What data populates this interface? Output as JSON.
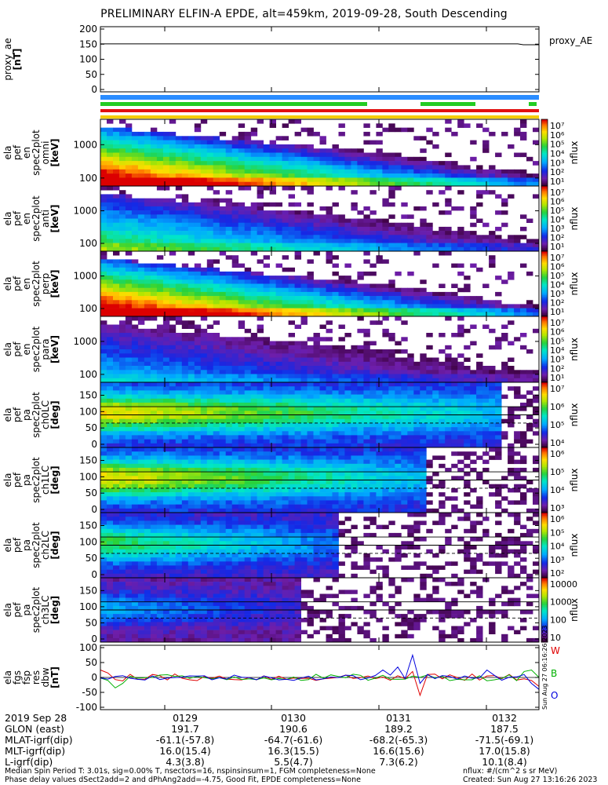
{
  "title": "PRELIMINARY ELFIN-A EPDE, alt=459km, 2019-09-28, South Descending",
  "panels": [
    {
      "ylabel": [
        "proxy_ae",
        "[nT]"
      ],
      "ticks": [
        "200",
        "150",
        "100",
        "50",
        "0"
      ],
      "legend": "proxy_AE"
    },
    {
      "ylabel": [
        "ela",
        "pef",
        "en",
        "spec2plot",
        "omni",
        "[keV]"
      ],
      "ticks": [
        "1000",
        "100"
      ],
      "cbticks": [
        "10⁷",
        "10⁶",
        "10⁵",
        "10⁴",
        "10³",
        "10²",
        "10¹"
      ],
      "cblabel": "nflux"
    },
    {
      "ylabel": [
        "ela",
        "pef",
        "en",
        "spec2plot",
        "anti",
        "[keV]"
      ],
      "ticks": [
        "1000",
        "100"
      ],
      "cbticks": [
        "10⁷",
        "10⁶",
        "10⁵",
        "10⁴",
        "10³",
        "10²",
        "10¹"
      ],
      "cblabel": "nflux"
    },
    {
      "ylabel": [
        "ela",
        "pef",
        "en",
        "spec2plot",
        "perp",
        "[keV]"
      ],
      "ticks": [
        "1000",
        "100"
      ],
      "cbticks": [
        "10⁷",
        "10⁶",
        "10⁵",
        "10⁴",
        "10³",
        "10²",
        "10¹"
      ],
      "cblabel": "nflux"
    },
    {
      "ylabel": [
        "ela",
        "pef",
        "en",
        "spec2plot",
        "para",
        "[keV]"
      ],
      "ticks": [
        "1000",
        "100"
      ],
      "cbticks": [
        "10⁷",
        "10⁶",
        "10⁵",
        "10⁴",
        "10³",
        "10²",
        "10¹"
      ],
      "cblabel": "nflux"
    },
    {
      "ylabel": [
        "ela",
        "pef",
        "pa",
        "spec2plot",
        "ch0LC",
        "[deg]"
      ],
      "ticks": [
        "150",
        "100",
        "50",
        "0"
      ],
      "cbticks": [
        "10⁷",
        "10⁶",
        "10⁵",
        "10⁴"
      ],
      "cblabel": "nflux"
    },
    {
      "ylabel": [
        "ela",
        "pef",
        "pa",
        "spec2plot",
        "ch1LC",
        "[deg]"
      ],
      "ticks": [
        "150",
        "100",
        "50",
        "0"
      ],
      "cbticks": [
        "10⁶",
        "10⁵",
        "10⁴",
        "10³"
      ],
      "cblabel": "nflux"
    },
    {
      "ylabel": [
        "ela",
        "pef",
        "pa",
        "spec2plot",
        "ch2LC",
        "[deg]"
      ],
      "ticks": [
        "150",
        "100",
        "50",
        "0"
      ],
      "cbticks": [
        "10⁶",
        "10⁵",
        "10⁴",
        "10³",
        "10²"
      ],
      "cblabel": "nflux"
    },
    {
      "ylabel": [
        "ela",
        "pef",
        "pa",
        "spec2plot",
        "ch3LC",
        "[deg]"
      ],
      "ticks": [
        "150",
        "100",
        "50",
        "0"
      ],
      "cbticks": [
        "10000",
        "1000",
        "100",
        "10"
      ],
      "cblabel": "nflux"
    },
    {
      "ylabel": [
        "ela",
        "fgs",
        "fsp",
        "res",
        "dbw",
        "[nT]"
      ],
      "ticks": [
        "100",
        "50",
        "0",
        "-50",
        "-100"
      ],
      "legend": [
        "W",
        "B",
        "O"
      ]
    }
  ],
  "footer": {
    "rows": [
      {
        "label": "2019 Sep 28",
        "values": [
          "0129",
          "0130",
          "0131",
          "0132"
        ]
      },
      {
        "label": "GLON (east)",
        "values": [
          "191.7",
          "190.6",
          "189.2",
          "187.5"
        ]
      },
      {
        "label": "MLAT-igrf(dip)",
        "values": [
          "-61.1(-57.8)",
          "-64.7(-61.6)",
          "-68.2(-65.3)",
          "-71.5(-69.1)"
        ]
      },
      {
        "label": "MLT-igrf(dip)",
        "values": [
          "16.0(15.4)",
          "16.3(15.5)",
          "16.6(15.6)",
          "17.0(15.8)"
        ]
      },
      {
        "label": "L-igrf(dip)",
        "values": [
          "4.3(3.8)",
          "5.5(4.7)",
          "7.3(6.2)",
          "10.1(8.4)"
        ]
      }
    ],
    "note1": "Median Spin Period T: 3.01s, sig=0.00% T, nsectors=16, nspinsinsum=1, FGM completeness=None",
    "note2": "Phase delay values dSect2add=2 and dPhAng2add=-4.75, Good Fit, EPDE completeness=None",
    "units": "nflux: #/(cm^2 s sr MeV)",
    "created": "Created: Sun Aug 27 13:16:26 2023",
    "sidestamp": "Sun Aug 27 06:16:26 2023"
  },
  "chart_data": {
    "type": "heatmap",
    "x_time_ticks": [
      "0129",
      "0130",
      "0131",
      "0132"
    ],
    "proxy_ae": {
      "ylim": [
        0,
        200
      ],
      "value_nT": 150
    },
    "energy_ylim_keV": [
      60,
      6000
    ],
    "pa_ylim_deg": [
      0,
      180
    ],
    "pa_reference_lines_deg": [
      90,
      115,
      65
    ],
    "dbw_ylim_nT": [
      -100,
      100
    ],
    "colorbar": "rainbow (purple-blue-cyan-green-yellow-red)",
    "orbit_bars": [
      "blue",
      "green",
      "red",
      "yellow"
    ]
  }
}
